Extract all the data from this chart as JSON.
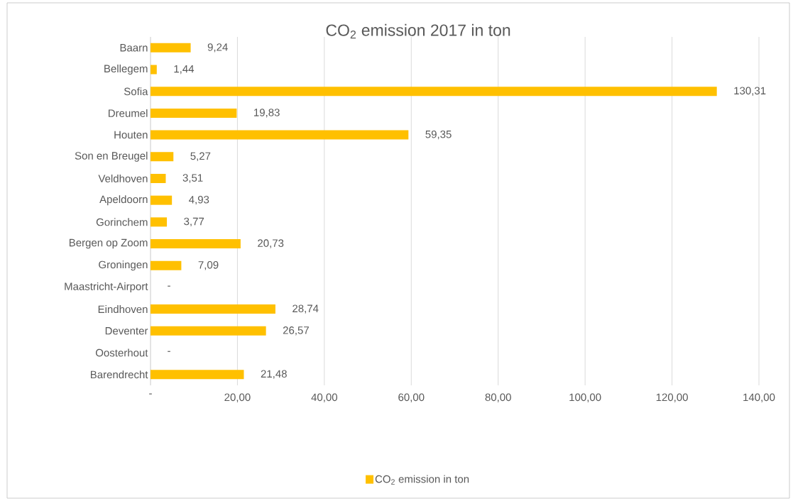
{
  "chart_data": {
    "type": "bar",
    "orientation": "horizontal",
    "title": "CO$_{2}$ emission 2017 in ton",
    "categories": [
      "Baarn",
      "Bellegem",
      "Sofia",
      "Dreumel",
      "Houten",
      "Son en Breugel",
      "Veldhoven",
      "Apeldoorn",
      "Gorinchem",
      "Bergen op Zoom",
      "Groningen",
      "Maastricht-Airport",
      "Eindhoven",
      "Deventer",
      "Oosterhout",
      "Barendrecht"
    ],
    "series": [
      {
        "name": "CO$_{2}$ emission in ton",
        "color": "#ffc000",
        "values": [
          9.24,
          1.44,
          130.31,
          19.83,
          59.35,
          5.27,
          3.51,
          4.93,
          3.77,
          20.73,
          7.09,
          0,
          28.74,
          26.57,
          0,
          21.48
        ],
        "value_labels": [
          "9,24",
          "1,44",
          "130,31",
          "19,83",
          "59,35",
          "5,27",
          "3,51",
          "4,93",
          "3,77",
          "20,73",
          "7,09",
          "-",
          "28,74",
          "26,57",
          "-",
          "21,48"
        ]
      }
    ],
    "xlim": [
      0,
      140
    ],
    "xticks": [
      {
        "value": 0,
        "label": "-"
      },
      {
        "value": 20,
        "label": "20,00"
      },
      {
        "value": 40,
        "label": "40,00"
      },
      {
        "value": 60,
        "label": "60,00"
      },
      {
        "value": 80,
        "label": "80,00"
      },
      {
        "value": 100,
        "label": "100,00"
      },
      {
        "value": 120,
        "label": "120,00"
      },
      {
        "value": 140,
        "label": "140,00"
      }
    ],
    "grid": "x",
    "legend": "bottom"
  }
}
